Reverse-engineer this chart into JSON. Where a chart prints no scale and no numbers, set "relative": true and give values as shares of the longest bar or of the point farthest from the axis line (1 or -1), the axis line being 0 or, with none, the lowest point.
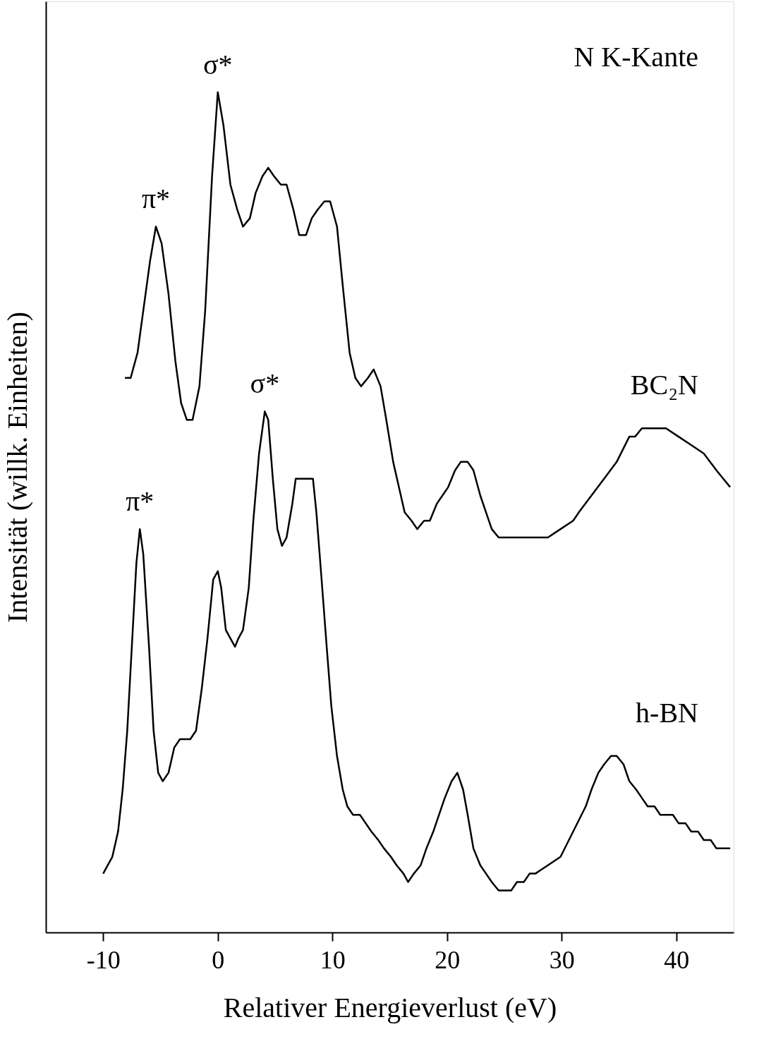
{
  "chart_data": {
    "type": "line",
    "relative": true,
    "title": "N K-Kante",
    "xlabel": "Relativer Energieverlust (eV)",
    "ylabel": "Intensität (willk. Einheiten)",
    "xlim": [
      -15,
      45
    ],
    "xticks": [
      -10,
      0,
      10,
      20,
      30,
      40
    ],
    "grid": false,
    "legend": false,
    "marker": "none",
    "line_style": "solid",
    "annotations": [
      {
        "text": "σ*",
        "x": 0,
        "y": 1.0
      },
      {
        "text": "π*",
        "x": -5.4,
        "y": 0.84
      },
      {
        "text": "σ*",
        "x": 4.1,
        "y": 0.62
      },
      {
        "text": "π*",
        "x": -6.8,
        "y": 0.48
      }
    ],
    "series": [
      {
        "name": "BC₂N",
        "color": "#000000",
        "x": [
          -8.1,
          -7.6,
          -7.0,
          -6.5,
          -5.9,
          -5.4,
          -4.9,
          -4.3,
          -3.7,
          -3.2,
          -2.7,
          -2.2,
          -1.6,
          -1.1,
          -0.5,
          0,
          0.5,
          1.1,
          1.7,
          2.2,
          2.8,
          3.3,
          3.9,
          4.4,
          4.9,
          5.5,
          6.0,
          6.6,
          7.1,
          7.7,
          8.2,
          8.7,
          9.3,
          9.8,
          10.4,
          10.9,
          11.5,
          12.0,
          12.5,
          13.1,
          13.6,
          14.2,
          14.7,
          15.3,
          15.8,
          16.3,
          16.9,
          17.4,
          18.0,
          18.5,
          19.1,
          19.6,
          20.1,
          20.7,
          21.2,
          21.8,
          22.3,
          22.9,
          23.4,
          23.9,
          24.5,
          25.0,
          25.6,
          26.7,
          27.2,
          27.7,
          28.8,
          29.9,
          31.0,
          31.5,
          32.6,
          33.7,
          34.8,
          35.9,
          36.4,
          37.0,
          37.5,
          38.1,
          39.1,
          40.2,
          41.3,
          42.4,
          43.5,
          44.1,
          44.7
        ],
        "values": [
          0.66,
          0.66,
          0.69,
          0.74,
          0.8,
          0.84,
          0.82,
          0.76,
          0.68,
          0.63,
          0.61,
          0.61,
          0.65,
          0.74,
          0.9,
          1.0,
          0.96,
          0.89,
          0.86,
          0.84,
          0.85,
          0.88,
          0.9,
          0.91,
          0.9,
          0.89,
          0.89,
          0.86,
          0.83,
          0.83,
          0.85,
          0.86,
          0.87,
          0.87,
          0.84,
          0.77,
          0.69,
          0.66,
          0.65,
          0.66,
          0.67,
          0.65,
          0.61,
          0.56,
          0.53,
          0.5,
          0.49,
          0.48,
          0.49,
          0.49,
          0.51,
          0.52,
          0.53,
          0.55,
          0.56,
          0.56,
          0.55,
          0.52,
          0.5,
          0.48,
          0.47,
          0.47,
          0.47,
          0.47,
          0.47,
          0.47,
          0.47,
          0.48,
          0.49,
          0.5,
          0.52,
          0.54,
          0.56,
          0.59,
          0.59,
          0.6,
          0.6,
          0.6,
          0.6,
          0.59,
          0.58,
          0.57,
          0.55,
          0.54,
          0.53
        ]
      },
      {
        "name": "h-BN",
        "color": "#000000",
        "x": [
          -10.0,
          -9.6,
          -9.2,
          -8.7,
          -8.3,
          -7.9,
          -7.5,
          -7.1,
          -6.8,
          -6.5,
          -6.0,
          -5.6,
          -5.2,
          -4.8,
          -4.3,
          -3.8,
          -3.3,
          -2.7,
          -2.4,
          -1.9,
          -1.4,
          -0.9,
          -0.4,
          0,
          0.3,
          0.7,
          1.1,
          1.5,
          1.8,
          2.2,
          2.7,
          3.1,
          3.6,
          4.1,
          4.4,
          4.8,
          5.2,
          5.6,
          6.0,
          6.5,
          6.8,
          7.1,
          7.6,
          8.0,
          8.3,
          8.6,
          9.0,
          9.5,
          9.9,
          10.4,
          10.9,
          11.3,
          11.8,
          12.4,
          12.9,
          13.4,
          14.0,
          14.5,
          15.1,
          15.6,
          16.2,
          16.6,
          17.1,
          17.7,
          18.2,
          18.8,
          19.3,
          19.8,
          20.4,
          20.9,
          21.4,
          21.8,
          22.3,
          22.9,
          23.4,
          23.9,
          24.5,
          25.6,
          26.1,
          26.7,
          27.2,
          27.7,
          28.8,
          29.9,
          31.0,
          32.1,
          32.6,
          33.2,
          33.7,
          34.3,
          34.8,
          35.4,
          35.9,
          36.5,
          37.0,
          37.5,
          38.1,
          38.6,
          39.1,
          39.7,
          40.2,
          40.8,
          41.3,
          41.9,
          42.4,
          43.0,
          43.5,
          44.0,
          44.7
        ],
        "values": [
          0.07,
          0.08,
          0.09,
          0.12,
          0.17,
          0.24,
          0.34,
          0.44,
          0.48,
          0.45,
          0.34,
          0.24,
          0.19,
          0.18,
          0.19,
          0.22,
          0.23,
          0.23,
          0.23,
          0.24,
          0.29,
          0.35,
          0.42,
          0.43,
          0.41,
          0.36,
          0.35,
          0.34,
          0.35,
          0.36,
          0.41,
          0.49,
          0.57,
          0.62,
          0.61,
          0.54,
          0.48,
          0.46,
          0.47,
          0.51,
          0.54,
          0.54,
          0.54,
          0.54,
          0.54,
          0.5,
          0.43,
          0.34,
          0.27,
          0.21,
          0.17,
          0.15,
          0.14,
          0.14,
          0.13,
          0.12,
          0.11,
          0.1,
          0.09,
          0.08,
          0.07,
          0.06,
          0.07,
          0.08,
          0.1,
          0.12,
          0.14,
          0.16,
          0.18,
          0.19,
          0.17,
          0.14,
          0.1,
          0.08,
          0.07,
          0.06,
          0.05,
          0.05,
          0.06,
          0.06,
          0.07,
          0.07,
          0.08,
          0.09,
          0.12,
          0.15,
          0.17,
          0.19,
          0.2,
          0.21,
          0.21,
          0.2,
          0.18,
          0.17,
          0.16,
          0.15,
          0.15,
          0.14,
          0.14,
          0.14,
          0.13,
          0.13,
          0.12,
          0.12,
          0.11,
          0.11,
          0.1,
          0.1,
          0.1
        ]
      }
    ]
  }
}
